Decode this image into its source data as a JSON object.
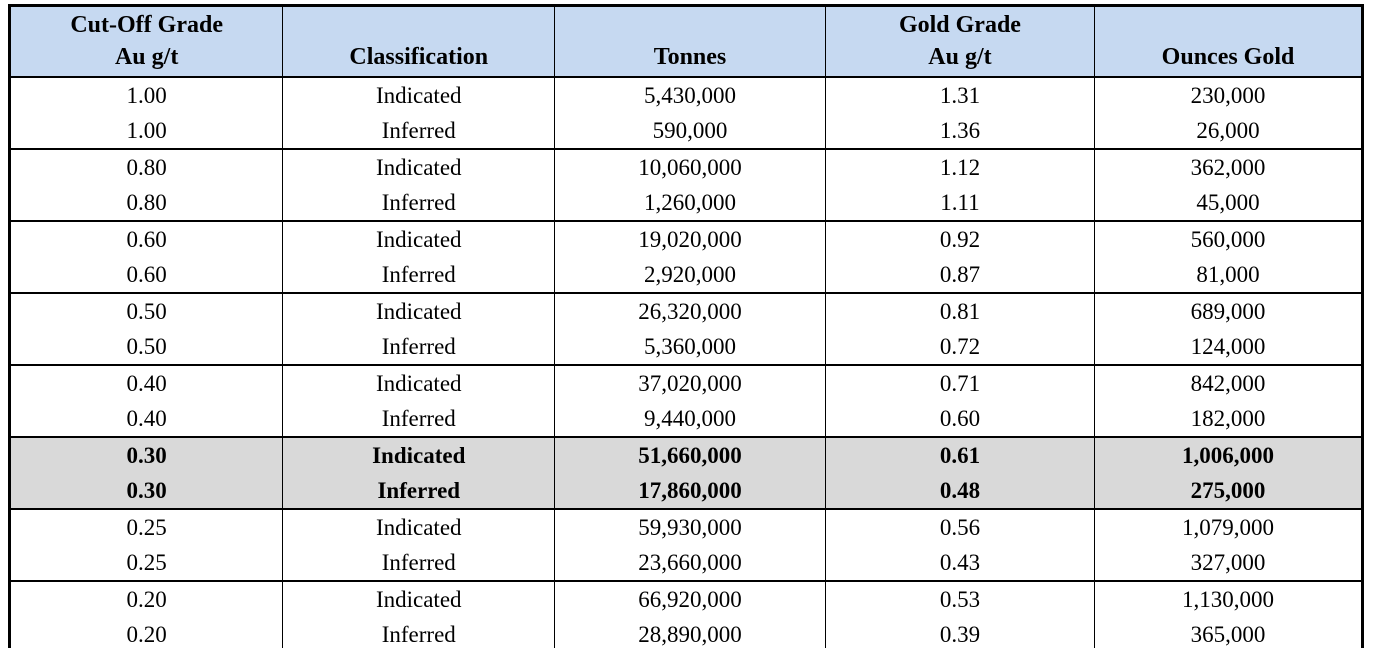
{
  "colors": {
    "header_bg": "#c6d9f1",
    "highlight_bg": "#d9d9d9",
    "border": "#000000",
    "text": "#000000",
    "page_bg": "#ffffff"
  },
  "table": {
    "headers": [
      {
        "top": "Cut-Off Grade",
        "bottom": "Au g/t"
      },
      {
        "top": "",
        "bottom": "Classification"
      },
      {
        "top": "",
        "bottom": "Tonnes"
      },
      {
        "top": "Gold Grade",
        "bottom": "Au g/t"
      },
      {
        "top": "",
        "bottom": "Ounces Gold"
      }
    ]
  },
  "chart_data": {
    "type": "table",
    "columns": [
      "Cut-Off Grade Au g/t",
      "Classification",
      "Tonnes",
      "Gold Grade Au g/t",
      "Ounces Gold"
    ],
    "rows": [
      [
        "1.00",
        "Indicated",
        "5,430,000",
        "1.31",
        "230,000"
      ],
      [
        "1.00",
        "Inferred",
        "590,000",
        "1.36",
        "26,000"
      ],
      [
        "0.80",
        "Indicated",
        "10,060,000",
        "1.12",
        "362,000"
      ],
      [
        "0.80",
        "Inferred",
        "1,260,000",
        "1.11",
        "45,000"
      ],
      [
        "0.60",
        "Indicated",
        "19,020,000",
        "0.92",
        "560,000"
      ],
      [
        "0.60",
        "Inferred",
        "2,920,000",
        "0.87",
        "81,000"
      ],
      [
        "0.50",
        "Indicated",
        "26,320,000",
        "0.81",
        "689,000"
      ],
      [
        "0.50",
        "Inferred",
        "5,360,000",
        "0.72",
        "124,000"
      ],
      [
        "0.40",
        "Indicated",
        "37,020,000",
        "0.71",
        "842,000"
      ],
      [
        "0.40",
        "Inferred",
        "9,440,000",
        "0.60",
        "182,000"
      ],
      [
        "0.30",
        "Indicated",
        "51,660,000",
        "0.61",
        "1,006,000"
      ],
      [
        "0.30",
        "Inferred",
        "17,860,000",
        "0.48",
        "275,000"
      ],
      [
        "0.25",
        "Indicated",
        "59,930,000",
        "0.56",
        "1,079,000"
      ],
      [
        "0.25",
        "Inferred",
        "23,660,000",
        "0.43",
        "327,000"
      ],
      [
        "0.20",
        "Indicated",
        "66,920,000",
        "0.53",
        "1,130,000"
      ],
      [
        "0.20",
        "Inferred",
        "28,890,000",
        "0.39",
        "365,000"
      ]
    ],
    "highlighted_rows": [
      10,
      11
    ],
    "row_grouping": "pairs by cut-off grade"
  }
}
